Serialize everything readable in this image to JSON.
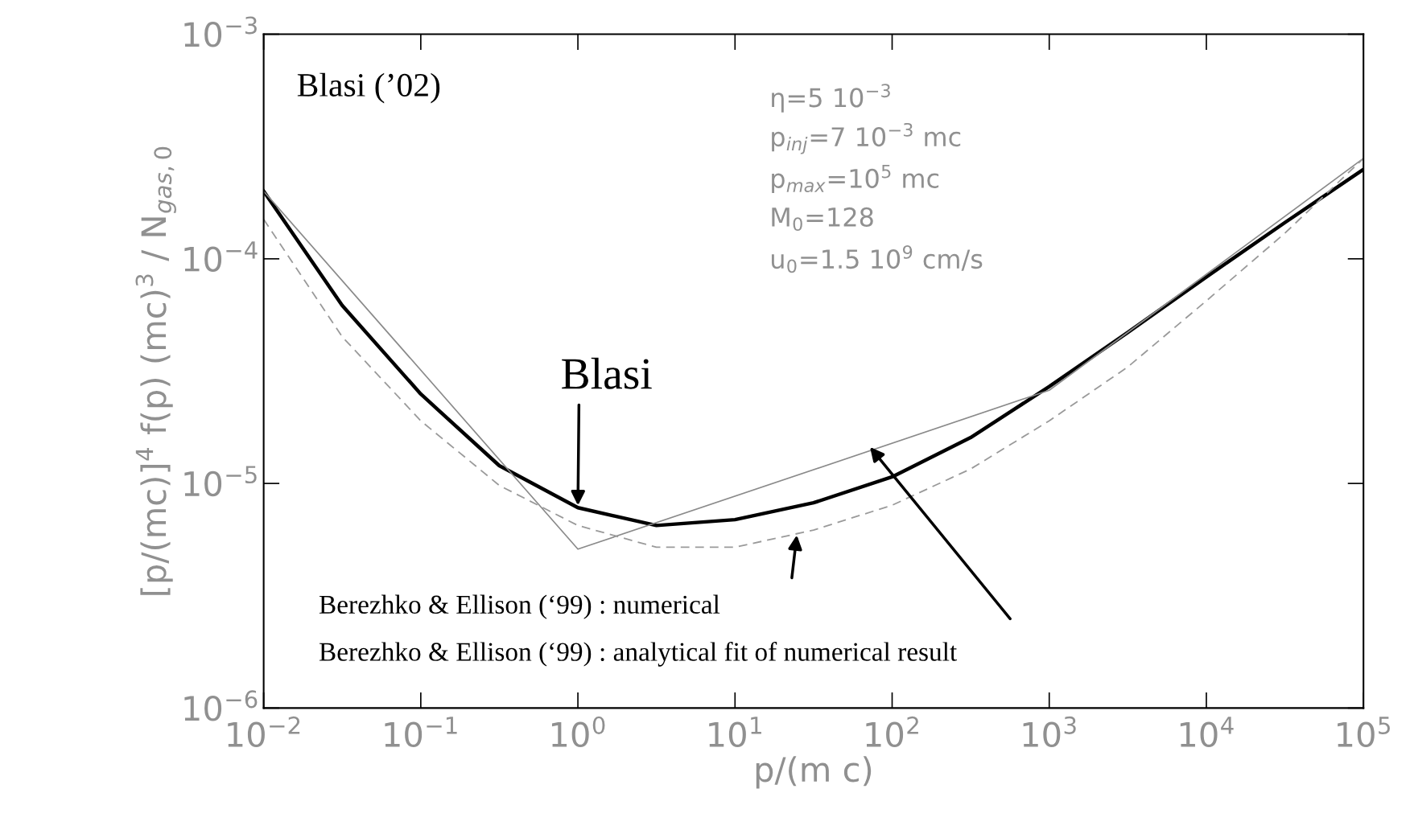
{
  "chart_data": {
    "type": "line",
    "xlabel": "p/(m c)",
    "ylabel": "[p/(mc)]$^{4}$ f(p) (mc)$^{3}$ / N$_{gas,0}$",
    "log": "xy",
    "grid": false,
    "legend": false,
    "xlim": [
      0.01,
      100000
    ],
    "ylim": [
      1e-06,
      0.001
    ],
    "xticks": [
      {
        "value": 0.01,
        "label": "10$^{−2}$"
      },
      {
        "value": 0.1,
        "label": "10$^{−1}$"
      },
      {
        "value": 1,
        "label": "10$^{0}$"
      },
      {
        "value": 10,
        "label": "10$^{1}$"
      },
      {
        "value": 100,
        "label": "10$^{2}$"
      },
      {
        "value": 1000,
        "label": "10$^{3}$"
      },
      {
        "value": 10000,
        "label": "10$^{4}$"
      },
      {
        "value": 100000,
        "label": "10$^{5}$"
      }
    ],
    "yticks": [
      {
        "value": 1e-06,
        "label": "10$^{−6}$"
      },
      {
        "value": 1e-05,
        "label": "10$^{−5}$"
      },
      {
        "value": 0.0001,
        "label": "10$^{−4}$"
      },
      {
        "value": 0.001,
        "label": "10$^{−3}$"
      }
    ],
    "series": [
      {
        "color": "#000000",
        "line_style": "solid",
        "x": [
          0.01,
          0.0316,
          0.1,
          0.316,
          1,
          3.16,
          10,
          31.6,
          100,
          316,
          1000,
          3160,
          10000,
          31600,
          100000
        ],
        "values": [
          0.0002,
          6.2e-05,
          2.5e-05,
          1.2e-05,
          7.8e-06,
          6.5e-06,
          6.9e-06,
          8.2e-06,
          1.07e-05,
          1.6e-05,
          2.7e-05,
          4.7e-05,
          8.3e-05,
          0.000145,
          0.00025
        ]
      },
      {
        "color": "#8a8a8a",
        "line_style": "solid",
        "x": [
          0.01,
          1,
          1000,
          100000
        ],
        "values": [
          0.0002,
          5.1e-06,
          2.6e-05,
          0.00028
        ]
      },
      {
        "color": "#9a9a9a",
        "line_style": "dashed",
        "x": [
          0.01,
          0.0316,
          0.1,
          0.316,
          1,
          3.16,
          10,
          31.6,
          100,
          316,
          1000,
          3160,
          10000,
          31600,
          100000
        ],
        "values": [
          0.00015,
          4.5e-05,
          1.9e-05,
          9.8e-06,
          6.5e-06,
          5.2e-06,
          5.2e-06,
          6.2e-06,
          8e-06,
          1.16e-05,
          1.9e-05,
          3.3e-05,
          6.5e-05,
          0.00013,
          0.00028
        ]
      }
    ],
    "annotations": [
      "Blasi (’02)",
      "η=5 10$^{−3}$",
      "p$_{inj}$=7 10$^{−3}$ mc",
      "p$_{max}$=10$^{5}$ mc",
      "M$_{0}$=128",
      "u$_{0}$=1.5 10$^{9}$ cm/s",
      {
        "text": "Blasi",
        "x": 1,
        "y": 7.8e-06
      },
      "Berezhko & Ellison (‘99) : numerical",
      "Berezhko & Ellison (‘99) : analytical fit of numerical result"
    ]
  }
}
